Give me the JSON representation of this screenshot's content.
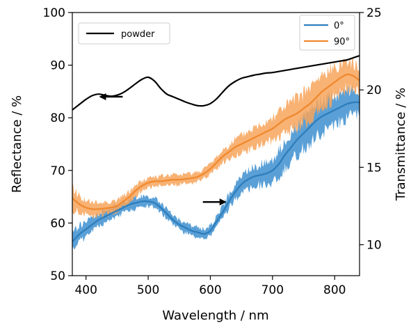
{
  "chart_data": {
    "type": "line",
    "xlabel": "Wavelength / nm",
    "ylabel_left": "Reflectance / %",
    "ylabel_right": "Transmittance / %",
    "xlim": [
      378,
      840
    ],
    "ylim_left": [
      50,
      100
    ],
    "ylim_right": [
      8,
      25
    ],
    "xticks": [
      400,
      500,
      600,
      700,
      800
    ],
    "yticks_left": [
      50,
      60,
      70,
      80,
      90,
      100
    ],
    "yticks_right": [
      10,
      15,
      20,
      25
    ],
    "grid": false,
    "legends": [
      {
        "placement": "top-left",
        "entries": [
          "powder"
        ]
      },
      {
        "placement": "top-right",
        "entries": [
          "0°",
          "90°"
        ]
      }
    ],
    "series": [
      {
        "name": "powder",
        "axis": "left",
        "color": "#000000",
        "x": [
          378,
          390,
          400,
          410,
          420,
          430,
          440,
          450,
          460,
          470,
          480,
          490,
          500,
          510,
          520,
          530,
          540,
          550,
          560,
          570,
          580,
          590,
          600,
          610,
          620,
          630,
          640,
          650,
          660,
          670,
          680,
          690,
          700,
          710,
          720,
          730,
          740,
          750,
          760,
          770,
          780,
          790,
          800,
          810,
          820,
          830,
          840
        ],
        "values": [
          81.5,
          82.6,
          83.5,
          84.2,
          84.5,
          84.3,
          84.1,
          84.3,
          84.8,
          85.6,
          86.5,
          87.3,
          87.7,
          87.0,
          85.6,
          84.5,
          84.0,
          83.5,
          83.0,
          82.6,
          82.3,
          82.3,
          82.7,
          83.6,
          84.9,
          86.1,
          86.9,
          87.5,
          87.8,
          88.1,
          88.3,
          88.5,
          88.6,
          88.8,
          89.0,
          89.2,
          89.4,
          89.6,
          89.8,
          90.0,
          90.2,
          90.4,
          90.6,
          90.8,
          91.0,
          91.4,
          91.8
        ]
      },
      {
        "name": "0°",
        "axis": "right",
        "color": "#2f7ebc",
        "band_color": "#3d8fd0",
        "x": [
          378,
          390,
          400,
          410,
          420,
          430,
          440,
          450,
          460,
          470,
          480,
          490,
          500,
          510,
          520,
          530,
          540,
          550,
          560,
          570,
          580,
          590,
          600,
          610,
          620,
          630,
          640,
          650,
          660,
          670,
          680,
          690,
          700,
          710,
          720,
          730,
          740,
          750,
          760,
          770,
          780,
          790,
          800,
          810,
          820,
          830,
          840
        ],
        "values": [
          10.2,
          10.7,
          11.0,
          11.3,
          11.6,
          11.8,
          12.0,
          12.2,
          12.4,
          12.6,
          12.7,
          12.8,
          12.8,
          12.7,
          12.4,
          12.0,
          11.6,
          11.3,
          11.1,
          10.9,
          10.8,
          10.7,
          10.9,
          11.5,
          12.1,
          12.8,
          13.4,
          13.9,
          14.2,
          14.4,
          14.5,
          14.6,
          14.8,
          15.2,
          15.8,
          16.3,
          16.8,
          17.2,
          17.6,
          18.0,
          18.3,
          18.5,
          18.7,
          18.9,
          19.1,
          19.2,
          19.2
        ],
        "spread": [
          0.7,
          0.6,
          0.55,
          0.5,
          0.45,
          0.45,
          0.45,
          0.4,
          0.4,
          0.4,
          0.4,
          0.35,
          0.35,
          0.35,
          0.35,
          0.35,
          0.35,
          0.35,
          0.35,
          0.35,
          0.35,
          0.35,
          0.35,
          0.4,
          0.45,
          0.5,
          0.55,
          0.6,
          0.65,
          0.7,
          0.75,
          0.8,
          0.85,
          0.9,
          0.95,
          1.0,
          1.05,
          1.1,
          1.1,
          1.1,
          1.1,
          1.1,
          1.1,
          1.05,
          1.0,
          0.9,
          0.8
        ]
      },
      {
        "name": "90°",
        "axis": "right",
        "color": "#f08a30",
        "band_color": "#f7a45c",
        "x": [
          378,
          390,
          400,
          410,
          420,
          430,
          440,
          450,
          460,
          470,
          480,
          490,
          500,
          510,
          520,
          530,
          540,
          550,
          560,
          570,
          580,
          590,
          600,
          610,
          620,
          630,
          640,
          650,
          660,
          670,
          680,
          690,
          700,
          710,
          720,
          730,
          740,
          750,
          760,
          770,
          780,
          790,
          800,
          810,
          820,
          830,
          840
        ],
        "values": [
          13.0,
          12.6,
          12.4,
          12.3,
          12.3,
          12.35,
          12.4,
          12.5,
          12.8,
          13.1,
          13.5,
          13.8,
          14.0,
          14.1,
          14.1,
          14.15,
          14.2,
          14.2,
          14.25,
          14.3,
          14.4,
          14.6,
          14.9,
          15.3,
          15.7,
          16.0,
          16.3,
          16.5,
          16.7,
          16.9,
          17.1,
          17.3,
          17.5,
          17.8,
          18.1,
          18.3,
          18.5,
          18.8,
          19.1,
          19.5,
          19.9,
          20.2,
          20.5,
          20.8,
          21.0,
          20.9,
          20.6
        ],
        "spread": [
          0.8,
          0.6,
          0.5,
          0.45,
          0.45,
          0.45,
          0.45,
          0.4,
          0.4,
          0.4,
          0.4,
          0.35,
          0.35,
          0.35,
          0.35,
          0.35,
          0.35,
          0.35,
          0.35,
          0.35,
          0.35,
          0.35,
          0.35,
          0.4,
          0.45,
          0.5,
          0.55,
          0.6,
          0.65,
          0.7,
          0.75,
          0.8,
          0.85,
          0.9,
          0.95,
          1.0,
          1.05,
          1.1,
          1.1,
          1.1,
          1.1,
          1.1,
          1.1,
          1.05,
          1.0,
          0.9,
          0.8
        ]
      }
    ],
    "annotations": [
      {
        "type": "arrow",
        "direction": "left",
        "x": 440,
        "y_left": 84,
        "meaning": "powder curve uses left axis"
      },
      {
        "type": "arrow",
        "direction": "right",
        "x": 607,
        "y_left": 64,
        "meaning": "0°/90° curves use right axis"
      }
    ]
  }
}
